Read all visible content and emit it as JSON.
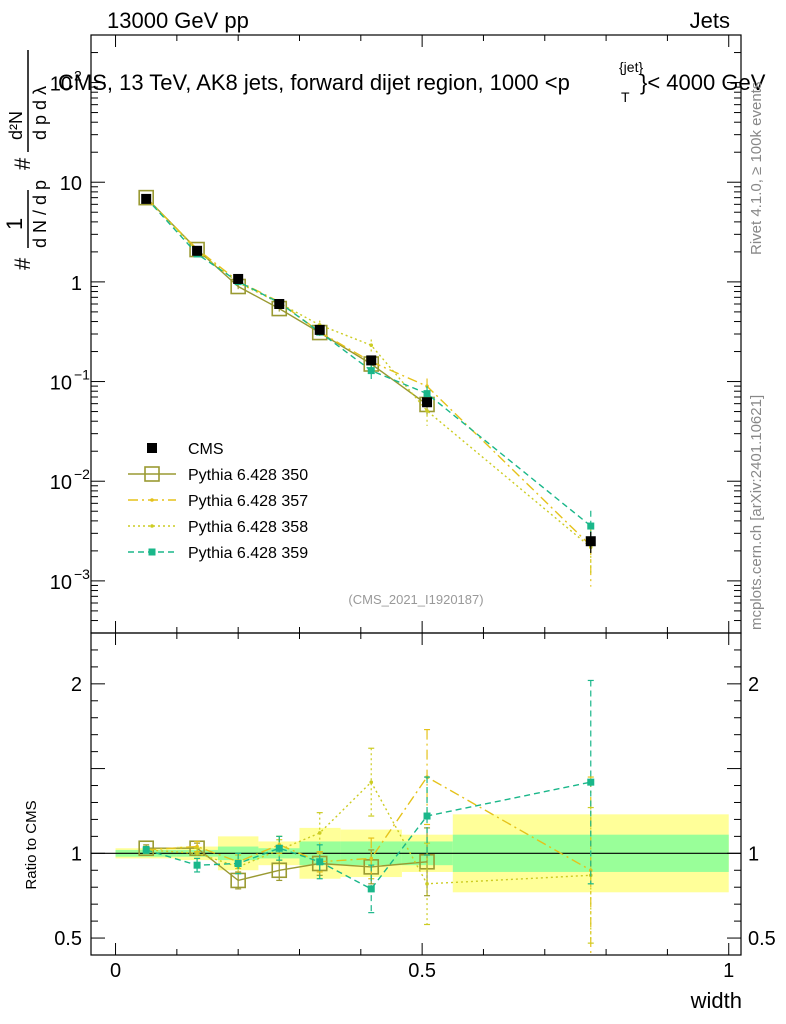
{
  "header": {
    "left": "13000 GeV pp",
    "right": "Jets",
    "title": "CMS, 13 TeV, AK8 jets, forward dijet region, 1000 <p",
    "title_sup": "{jet}",
    "title_sub": "T",
    "title_tail": "}< 4000 GeV"
  },
  "side_labels": {
    "rivet": "Rivet 4.1.0, ≥ 100k events",
    "mcplots": "mcplots.cern.ch [arXiv:2401.10621]"
  },
  "colors": {
    "cms": "#000000",
    "p350": "#9a9a32",
    "p357": "#e5c21a",
    "p358": "#cccc22",
    "p359": "#1ab78a",
    "band_yellow": "#ffff99",
    "band_green": "#99ff99"
  },
  "chart_data": {
    "type": "line",
    "title": "CMS, 13 TeV, AK8 jets, forward dijet region, 1000 <p_T^{jet}< 4000 GeV",
    "xlabel": "width",
    "ylabel_main": "1/dN/dp_T  d²N/dp_T dλ",
    "ylabel_ratio": "Ratio to CMS",
    "watermark": "(CMS_2021_I1920187)",
    "xlim": [
      -0.04,
      1.02
    ],
    "ylim_main": [
      0.0003,
      300
    ],
    "ylim_ratio": [
      0.4,
      2.3
    ],
    "x_ticks": [
      {
        "v": 0,
        "label": "0"
      },
      {
        "v": 0.5,
        "label": "0.5"
      },
      {
        "v": 1,
        "label": "1"
      }
    ],
    "y_ticks_main": [
      {
        "v": 0.001,
        "base": "10",
        "exp": "−3"
      },
      {
        "v": 0.01,
        "base": "10",
        "exp": "−2"
      },
      {
        "v": 0.1,
        "base": "10",
        "exp": "−1"
      },
      {
        "v": 1,
        "base": "1",
        "exp": ""
      },
      {
        "v": 10,
        "base": "10",
        "exp": ""
      },
      {
        "v": 100,
        "base": "10",
        "exp": "2"
      }
    ],
    "y_ticks_ratio": [
      {
        "v": 0.5,
        "label": "0.5"
      },
      {
        "v": 1,
        "label": "1"
      },
      {
        "v": 2,
        "label": "2"
      }
    ],
    "bins": [
      {
        "lo": 0.0,
        "hi": 0.1,
        "yel": 0.03,
        "grn": 0.02
      },
      {
        "lo": 0.1,
        "hi": 0.167,
        "yel": 0.04,
        "grn": 0.02
      },
      {
        "lo": 0.167,
        "hi": 0.233,
        "yel": 0.1,
        "grn": 0.04
      },
      {
        "lo": 0.233,
        "hi": 0.3,
        "yel": 0.07,
        "grn": 0.03
      },
      {
        "lo": 0.3,
        "hi": 0.367,
        "yel": 0.15,
        "grn": 0.07
      },
      {
        "lo": 0.367,
        "hi": 0.467,
        "yel": 0.14,
        "grn": 0.07
      },
      {
        "lo": 0.467,
        "hi": 0.55,
        "yel": 0.11,
        "grn": 0.07
      },
      {
        "lo": 0.55,
        "hi": 1.0,
        "yel": 0.23,
        "grn": 0.11
      }
    ],
    "cms": {
      "name": "CMS",
      "x": [
        0.05,
        0.133,
        0.2,
        0.267,
        0.333,
        0.417,
        0.508,
        0.775
      ],
      "y": [
        6.8,
        2.05,
        1.07,
        0.6,
        0.33,
        0.163,
        0.062,
        0.0025
      ],
      "err": [
        0.15,
        0.06,
        0.04,
        0.02,
        0.015,
        0.01,
        0.005,
        0.0006
      ]
    },
    "legend": [
      {
        "key": "cms",
        "label": "CMS"
      },
      {
        "key": "p350",
        "label": "Pythia 6.428 350"
      },
      {
        "key": "p357",
        "label": "Pythia 6.428 357"
      },
      {
        "key": "p358",
        "label": "Pythia 6.428 358"
      },
      {
        "key": "p359",
        "label": "Pythia 6.428 359"
      }
    ],
    "series": [
      {
        "key": "p350",
        "name": "Pythia 6.428 350",
        "marker": "open-square",
        "dash": "",
        "ratio": [
          1.03,
          1.03,
          0.84,
          0.9,
          0.94,
          0.92,
          0.95,
          null
        ],
        "rerr": [
          0.02,
          0.03,
          0.05,
          0.06,
          0.07,
          0.1,
          0.2,
          null
        ]
      },
      {
        "key": "p357",
        "name": "Pythia 6.428 357",
        "marker": "tiny",
        "dash": "10,4,2,4",
        "ratio": [
          1.02,
          1.04,
          0.95,
          1.05,
          0.95,
          0.97,
          1.45,
          0.9
        ],
        "rerr": [
          0.02,
          0.03,
          0.04,
          0.05,
          0.06,
          0.12,
          0.28,
          0.55
        ]
      },
      {
        "key": "p358",
        "name": "Pythia 6.428 358",
        "marker": "tiny",
        "dash": "2,3",
        "ratio": [
          1.02,
          1.0,
          0.92,
          1.02,
          1.12,
          1.42,
          0.82,
          0.87
        ],
        "rerr": [
          0.02,
          0.03,
          0.04,
          0.06,
          0.12,
          0.2,
          0.24,
          0.4
        ]
      },
      {
        "key": "p359",
        "name": "Pythia 6.428 359",
        "marker": "square",
        "dash": "6,4",
        "ratio": [
          1.02,
          0.93,
          0.94,
          1.03,
          0.95,
          0.79,
          1.22,
          1.42
        ],
        "rerr": [
          0.02,
          0.04,
          0.06,
          0.07,
          0.1,
          0.14,
          0.23,
          0.6
        ]
      }
    ]
  }
}
